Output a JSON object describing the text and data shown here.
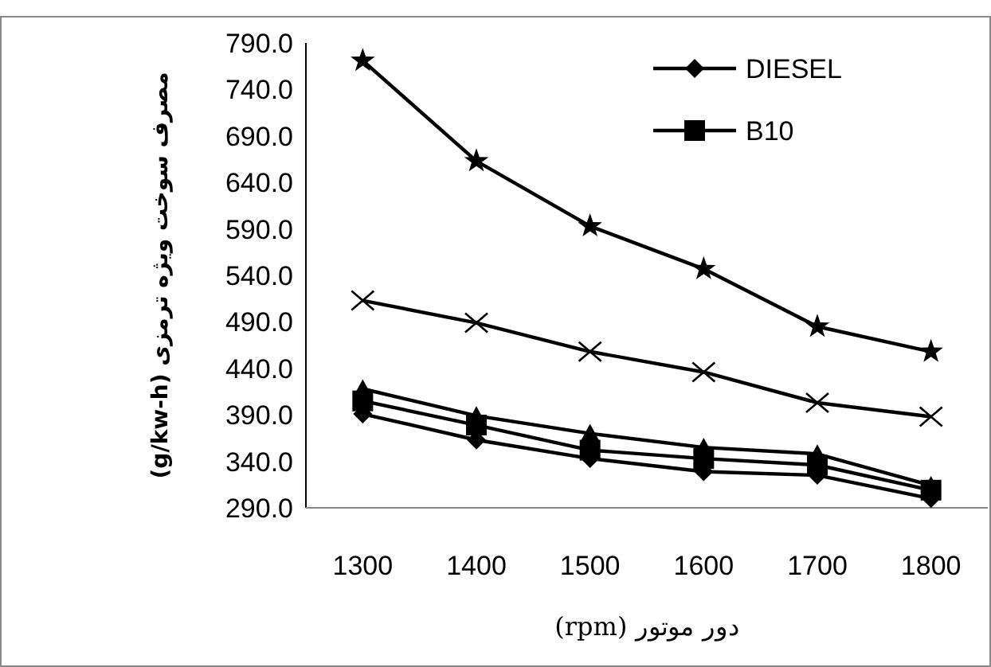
{
  "chart_data": {
    "type": "line",
    "xlabel": "دور موتور (rpm)",
    "ylabel": "مصرف سوخت ویژه ترمزی (g/kw-h)",
    "categories": [
      "1300",
      "1400",
      "1500",
      "1600",
      "1700",
      "1800"
    ],
    "series": [
      {
        "name": "DIESEL",
        "color": "#000000",
        "marker": "diamond",
        "values": [
          391,
          363,
          343,
          329,
          325,
          300
        ]
      },
      {
        "name": "B10",
        "color": "#000000",
        "marker": "square",
        "values": [
          405,
          379,
          352,
          343,
          336,
          309
        ]
      },
      {
        "color": "#000000",
        "marker": "triangle",
        "values": [
          418,
          389,
          370,
          355,
          348,
          314
        ]
      },
      {
        "color": "#000000",
        "marker": "cross",
        "values": [
          513,
          489,
          458,
          436,
          403,
          388
        ]
      },
      {
        "color": "#000000",
        "marker": "star",
        "values": [
          771,
          663,
          593,
          547,
          485,
          458
        ]
      }
    ],
    "ylim": [
      290,
      790
    ],
    "yticks": [
      {
        "value": 290,
        "label": "290.0"
      },
      {
        "value": 340,
        "label": "340.0"
      },
      {
        "value": 390,
        "label": "390.0"
      },
      {
        "value": 440,
        "label": "440.0"
      },
      {
        "value": 490,
        "label": "490.0"
      },
      {
        "value": 540,
        "label": "540.0"
      },
      {
        "value": 590,
        "label": "590.0"
      },
      {
        "value": 640,
        "label": "640.0"
      },
      {
        "value": 690,
        "label": "690.0"
      },
      {
        "value": 740,
        "label": "740.0"
      },
      {
        "value": 790,
        "label": "790.0"
      }
    ],
    "grid": false,
    "legend": "top right",
    "line_style": "solid"
  }
}
